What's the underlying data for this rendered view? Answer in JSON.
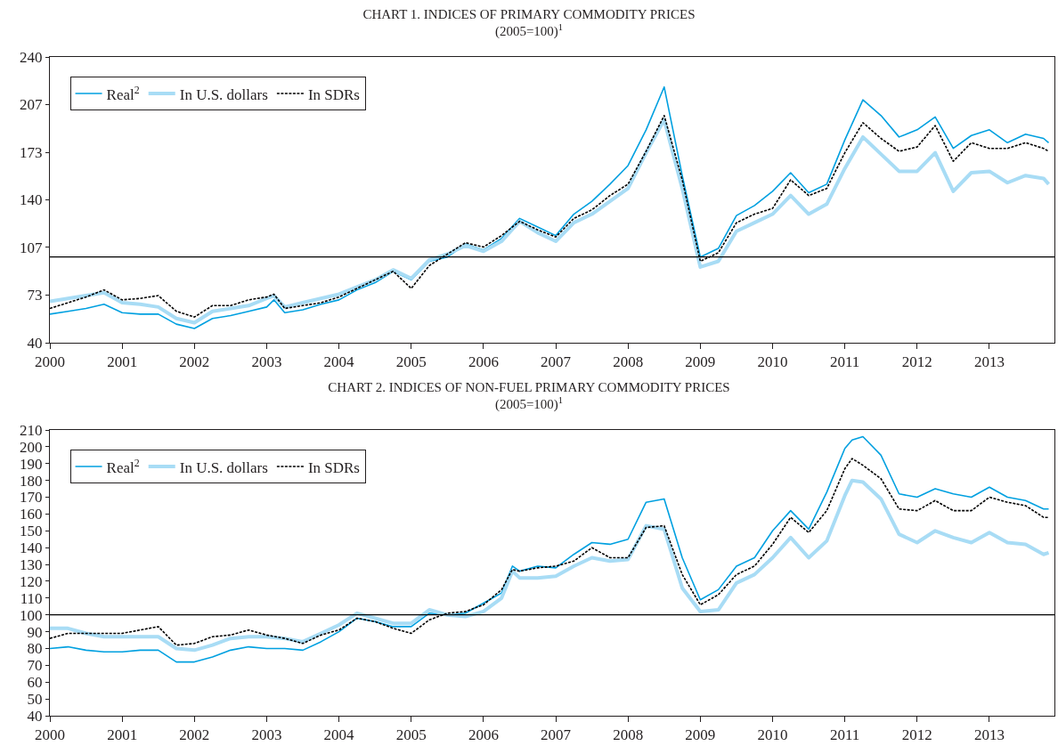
{
  "chart_data": [
    {
      "type": "line",
      "title": "CHART 1. INDICES OF PRIMARY COMMODITY PRICES",
      "subtitle": "(2005=100)$^{1}$",
      "x": [
        2000,
        2000.25,
        2000.5,
        2000.75,
        2001,
        2001.25,
        2001.5,
        2001.75,
        2002,
        2002.25,
        2002.5,
        2002.75,
        2003,
        2003.1,
        2003.25,
        2003.5,
        2003.75,
        2004,
        2004.25,
        2004.5,
        2004.75,
        2005,
        2005.25,
        2005.5,
        2005.75,
        2006,
        2006.25,
        2006.5,
        2006.75,
        2007,
        2007.25,
        2007.5,
        2007.75,
        2008,
        2008.25,
        2008.5,
        2008.75,
        2009,
        2009.25,
        2009.5,
        2009.75,
        2010,
        2010.25,
        2010.5,
        2010.75,
        2011,
        2011.25,
        2011.5,
        2011.75,
        2012,
        2012.25,
        2012.5,
        2012.75,
        2013,
        2013.25,
        2013.5,
        2013.75,
        2013.82
      ],
      "series": [
        {
          "name": "Real$^{2}$",
          "color": "#00a0e0",
          "line_style": "solid",
          "values": [
            60,
            62,
            64,
            67,
            61,
            60,
            60,
            53,
            50,
            57,
            59,
            62,
            65,
            70,
            61,
            63,
            67,
            70,
            77,
            82,
            90,
            84,
            97,
            100,
            109,
            105,
            113,
            127,
            121,
            115,
            130,
            139,
            151,
            164,
            189,
            219,
            157,
            100,
            106,
            129,
            136,
            146,
            159,
            145,
            151,
            182,
            210,
            199,
            184,
            189,
            198,
            176,
            185,
            189,
            180,
            186,
            183,
            180
          ]
        },
        {
          "name": "In U.S. dollars",
          "color": "#a8dcf5",
          "line_style": "solid",
          "values": [
            69,
            71,
            73,
            75,
            68,
            67,
            65,
            57,
            54,
            62,
            64,
            66,
            71,
            73,
            65,
            68,
            71,
            74,
            79,
            84,
            91,
            85,
            98,
            102,
            108,
            104,
            111,
            125,
            117,
            111,
            124,
            130,
            139,
            148,
            173,
            196,
            148,
            93,
            97,
            118,
            124,
            130,
            143,
            130,
            137,
            162,
            184,
            172,
            160,
            160,
            173,
            146,
            159,
            160,
            152,
            157,
            155,
            151
          ]
        },
        {
          "name": "In SDRs",
          "color": "#000000",
          "line_style": "dotted",
          "values": [
            64,
            68,
            72,
            77,
            70,
            71,
            73,
            62,
            58,
            66,
            66,
            70,
            72,
            74,
            64,
            66,
            68,
            72,
            78,
            84,
            90,
            78,
            94,
            102,
            110,
            107,
            115,
            125,
            119,
            114,
            127,
            133,
            143,
            151,
            174,
            199,
            154,
            97,
            103,
            124,
            130,
            134,
            154,
            143,
            148,
            173,
            194,
            183,
            174,
            177,
            192,
            167,
            180,
            176,
            176,
            180,
            176,
            174
          ]
        }
      ],
      "xlim": [
        2000,
        2013.9
      ],
      "xticks": [
        2000,
        2001,
        2002,
        2003,
        2004,
        2005,
        2006,
        2007,
        2008,
        2009,
        2010,
        2011,
        2012,
        2013
      ],
      "ylim": [
        40,
        240
      ],
      "yticks": [
        40,
        {
          "value": 73.33,
          "label": "73"
        },
        {
          "value": 106.67,
          "label": "107"
        },
        140,
        {
          "value": 173.33,
          "label": "173"
        },
        {
          "value": 206.67,
          "label": "207"
        },
        240
      ],
      "ref_lines": [
        {
          "axis": "y",
          "value": 100,
          "color": "#000000"
        }
      ],
      "grid": false,
      "legend": "top left"
    },
    {
      "type": "line",
      "title": "CHART 2. INDICES OF NON-FUEL PRIMARY COMMODITY PRICES",
      "subtitle": "(2005=100)$^{1}$",
      "x": [
        2000,
        2000.25,
        2000.5,
        2000.75,
        2001,
        2001.25,
        2001.5,
        2001.75,
        2002,
        2002.25,
        2002.5,
        2002.75,
        2003,
        2003.25,
        2003.5,
        2003.75,
        2004,
        2004.25,
        2004.5,
        2004.75,
        2005,
        2005.25,
        2005.5,
        2005.75,
        2006,
        2006.25,
        2006.4,
        2006.5,
        2006.75,
        2007,
        2007.25,
        2007.5,
        2007.75,
        2008,
        2008.25,
        2008.5,
        2008.75,
        2009,
        2009.25,
        2009.5,
        2009.75,
        2010,
        2010.25,
        2010.5,
        2010.75,
        2011,
        2011.1,
        2011.25,
        2011.5,
        2011.75,
        2012,
        2012.25,
        2012.5,
        2012.75,
        2013,
        2013.25,
        2013.5,
        2013.75,
        2013.82
      ],
      "series": [
        {
          "name": "Real$^{2}$",
          "color": "#00a0e0",
          "line_style": "solid",
          "values": [
            80,
            81,
            79,
            78,
            78,
            79,
            79,
            72,
            72,
            75,
            79,
            81,
            80,
            80,
            79,
            84,
            90,
            98,
            96,
            93,
            93,
            101,
            100,
            101,
            107,
            113,
            129,
            126,
            129,
            128,
            136,
            143,
            142,
            145,
            167,
            169,
            134,
            109,
            115,
            129,
            134,
            150,
            162,
            151,
            173,
            199,
            204,
            206,
            195,
            172,
            170,
            175,
            172,
            170,
            176,
            170,
            168,
            163,
            163
          ]
        },
        {
          "name": "In U.S. dollars",
          "color": "#a8dcf5",
          "line_style": "solid",
          "values": [
            92,
            92,
            89,
            87,
            87,
            87,
            87,
            80,
            79,
            82,
            86,
            87,
            87,
            86,
            84,
            89,
            94,
            101,
            98,
            95,
            95,
            103,
            100,
            99,
            102,
            110,
            126,
            122,
            122,
            123,
            129,
            134,
            132,
            133,
            153,
            151,
            116,
            102,
            103,
            119,
            124,
            134,
            146,
            134,
            144,
            171,
            180,
            179,
            169,
            148,
            143,
            150,
            146,
            143,
            149,
            143,
            142,
            136,
            137
          ]
        },
        {
          "name": "In SDRs",
          "color": "#000000",
          "line_style": "dotted",
          "values": [
            86,
            89,
            89,
            89,
            89,
            91,
            93,
            82,
            83,
            87,
            88,
            91,
            88,
            86,
            83,
            88,
            91,
            98,
            96,
            92,
            89,
            97,
            101,
            102,
            106,
            115,
            127,
            126,
            128,
            129,
            132,
            140,
            134,
            134,
            152,
            153,
            124,
            106,
            112,
            124,
            129,
            142,
            158,
            149,
            162,
            187,
            193,
            189,
            181,
            163,
            162,
            168,
            162,
            162,
            170,
            167,
            165,
            158,
            158
          ]
        }
      ],
      "xlim": [
        2000,
        2013.9
      ],
      "xticks": [
        2000,
        2001,
        2002,
        2003,
        2004,
        2005,
        2006,
        2007,
        2008,
        2009,
        2010,
        2011,
        2012,
        2013
      ],
      "ylim": [
        40,
        210
      ],
      "yticks": [
        40,
        50,
        60,
        70,
        80,
        90,
        100,
        110,
        120,
        130,
        140,
        150,
        160,
        170,
        180,
        190,
        200,
        210
      ],
      "ref_lines": [
        {
          "axis": "y",
          "value": 100,
          "color": "#000000"
        }
      ],
      "grid": false,
      "legend": "top left"
    }
  ]
}
